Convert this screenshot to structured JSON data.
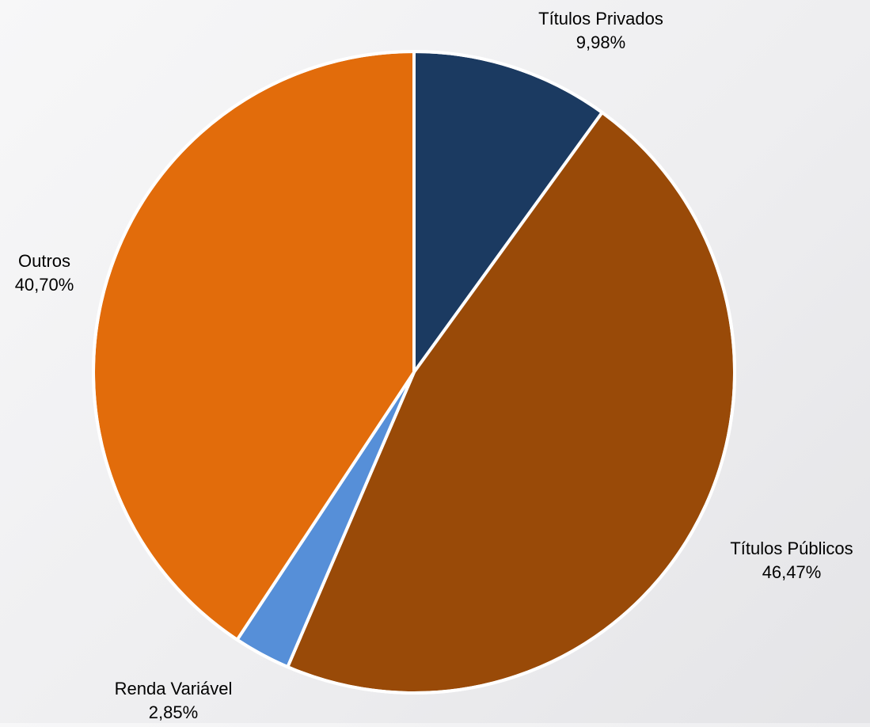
{
  "chart_data": {
    "type": "pie",
    "title": "",
    "start": "12 o'clock",
    "direction": "clockwise",
    "slices": [
      {
        "label": "Títulos Privados",
        "value": 9.98,
        "value_text": "9,98%",
        "color": "#1b3a61"
      },
      {
        "label": "Títulos Públicos",
        "value": 46.47,
        "value_text": "46,47%",
        "color": "#994a08"
      },
      {
        "label": "Renda Variável",
        "value": 2.85,
        "value_text": "2,85%",
        "color": "#568fd8"
      },
      {
        "label": "Outros",
        "value": 40.7,
        "value_text": "40,70%",
        "color": "#e26c0b"
      }
    ],
    "legend": "none"
  }
}
